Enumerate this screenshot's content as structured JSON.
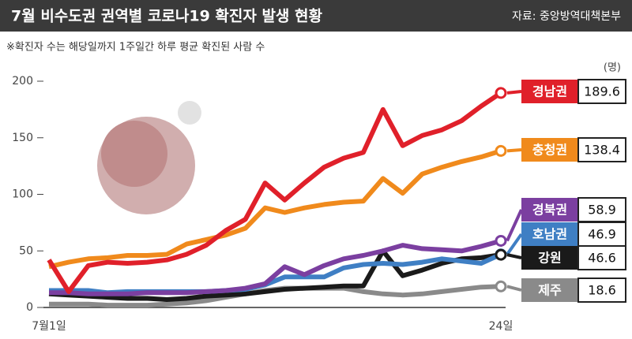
{
  "chart_data": {
    "type": "line",
    "title": "7월 비수도권 권역별 코로나19 확진자 발생 현황",
    "source": "자료: 중앙방역대책본부",
    "subtitle": "※확진자 수는 해당일까지 1주일간 하루 평균 확진된 사람 수",
    "y_unit": "(명)",
    "categories": [
      "7월1일",
      null,
      null,
      null,
      null,
      null,
      null,
      null,
      null,
      null,
      null,
      null,
      null,
      null,
      null,
      null,
      null,
      null,
      null,
      null,
      null,
      null,
      null,
      "24일"
    ],
    "ylim": [
      0,
      200
    ],
    "yticks": [
      0,
      50,
      100,
      150,
      200
    ],
    "grid": false,
    "series": [
      {
        "name": "경남권",
        "color": "#e0202a",
        "values": [
          42,
          14,
          37,
          40,
          39,
          40,
          42,
          47,
          55,
          68,
          78,
          110,
          95,
          110,
          124,
          132,
          137,
          175,
          143,
          152,
          157,
          165,
          178,
          189.6
        ]
      },
      {
        "name": "충청권",
        "color": "#f08a1c",
        "values": [
          36,
          40,
          43,
          44,
          46,
          46,
          47,
          56,
          60,
          64,
          70,
          88,
          84,
          88,
          91,
          93,
          94,
          114,
          101,
          118,
          124,
          129,
          133,
          138.4
        ]
      },
      {
        "name": "경북권",
        "color": "#7b3fa0",
        "values": [
          13,
          13,
          12,
          12,
          12,
          13,
          13,
          13,
          14,
          15,
          17,
          21,
          36,
          29,
          37,
          43,
          46,
          50,
          55,
          52,
          51,
          50,
          54,
          58.9
        ]
      },
      {
        "name": "호남권",
        "color": "#3f7fc4",
        "values": [
          15,
          15,
          15,
          13,
          14,
          14,
          14,
          14,
          14,
          15,
          16,
          20,
          27,
          27,
          27,
          35,
          38,
          39,
          38,
          40,
          43,
          41,
          39,
          46.9
        ]
      },
      {
        "name": "강원",
        "color": "#1a1a1a",
        "values": [
          12,
          11,
          10,
          9,
          8,
          8,
          7,
          8,
          10,
          11,
          12,
          14,
          16,
          17,
          18,
          19,
          19,
          50,
          28,
          33,
          39,
          43,
          44,
          46.6
        ]
      },
      {
        "name": "제주",
        "color": "#8a8a8a",
        "values": [
          3,
          3,
          3,
          2,
          2,
          2,
          3,
          4,
          6,
          9,
          12,
          15,
          17,
          17,
          17,
          17,
          14,
          12,
          11,
          12,
          14,
          16,
          18,
          18.6
        ]
      }
    ]
  }
}
